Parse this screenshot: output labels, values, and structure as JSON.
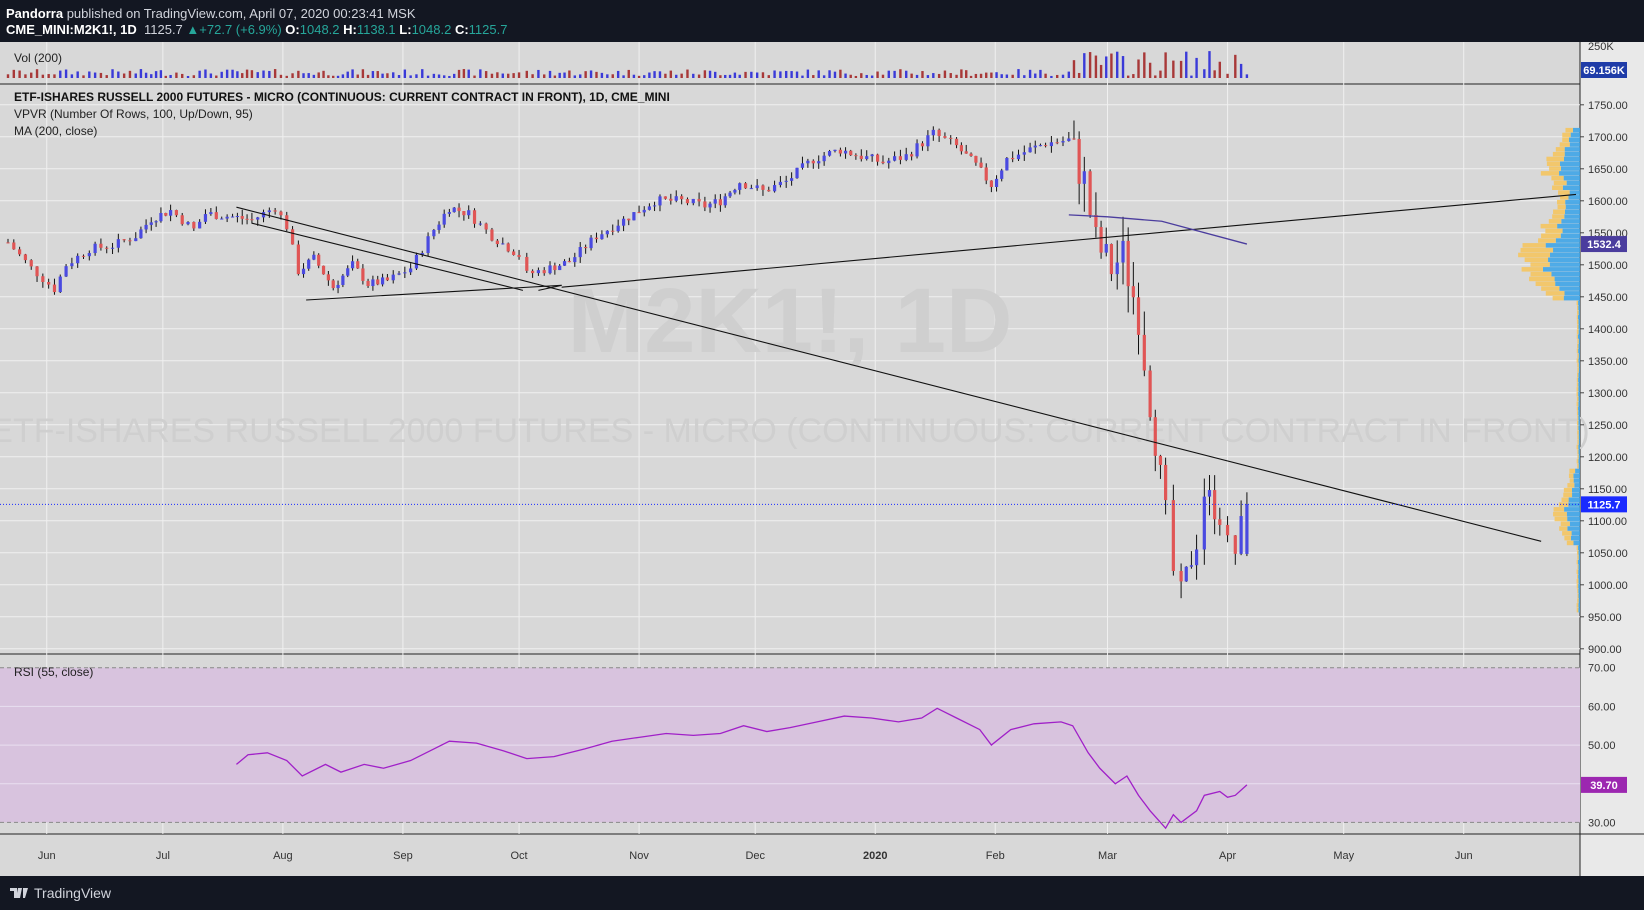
{
  "header": {
    "author": "Pandorra",
    "published_text": "published on TradingView.com, April 07, 2020 00:23:41 MSK",
    "symbol": "CME_MINI:M2K1!, 1D",
    "last": "1125.7",
    "change": "+72.7 (+6.9%)",
    "ohlc": {
      "o": "1048.2",
      "h": "1138.1",
      "l": "1048.2",
      "c": "1125.7"
    }
  },
  "footer": {
    "brand": "TradingView"
  },
  "colors": {
    "background": "#d8d8d8",
    "grid": "#f0f0f0",
    "up_candle": "#4a4ae0",
    "down_candle": "#e05555",
    "ma_line": "#4b3d9e",
    "rsi_line": "#a020c8",
    "rsi_band": "#d8c3de",
    "price_marker": "#1a2aff",
    "vpvr_up": "#3fa5e8",
    "vpvr_down": "#f5c560"
  },
  "chart_data": [
    {
      "type": "candlestick",
      "panel": "price",
      "title": "ETF-ISHARES RUSSELL 2000 FUTURES - MICRO (CONTINUOUS: CURRENT CONTRACT IN FRONT), 1D, CME_MINI",
      "watermark_symbol": "M2K1!, 1D",
      "watermark_name": "ETF-ISHARES RUSSELL 2000 FUTURES - MICRO (CONTINUOUS: CURRENT CONTRACT IN FRONT)",
      "indicators": [
        "VPVR (Number Of Rows, 100, Up/Down, 95)",
        "MA (200, close)"
      ],
      "x_ticks": [
        "Jun",
        "Jul",
        "Aug",
        "Sep",
        "Oct",
        "Nov",
        "Dec",
        "2020",
        "Feb",
        "Mar",
        "Apr",
        "May",
        "Jun"
      ],
      "x_tick_dates": [
        "2019-06-01",
        "2019-07-01",
        "2019-08-01",
        "2019-09-01",
        "2019-10-01",
        "2019-11-01",
        "2019-12-01",
        "2020-01-01",
        "2020-02-01",
        "2020-03-01",
        "2020-04-01",
        "2020-05-01",
        "2020-06-01"
      ],
      "x_range": [
        "2019-05-22",
        "2020-06-30"
      ],
      "y_ticks": [
        900,
        950,
        1000,
        1050,
        1100,
        1150,
        1200,
        1250,
        1300,
        1350,
        1400,
        1450,
        1500,
        1550,
        1600,
        1650,
        1700,
        1750
      ],
      "ylim": [
        895,
        1770
      ],
      "close_path": [
        {
          "d": "2019-05-22",
          "c": 1535
        },
        {
          "d": "2019-05-28",
          "c": 1495
        },
        {
          "d": "2019-06-03",
          "c": 1462
        },
        {
          "d": "2019-06-06",
          "c": 1500
        },
        {
          "d": "2019-06-12",
          "c": 1525
        },
        {
          "d": "2019-06-18",
          "c": 1530
        },
        {
          "d": "2019-06-24",
          "c": 1545
        },
        {
          "d": "2019-06-28",
          "c": 1572
        },
        {
          "d": "2019-07-03",
          "c": 1585
        },
        {
          "d": "2019-07-09",
          "c": 1555
        },
        {
          "d": "2019-07-12",
          "c": 1580
        },
        {
          "d": "2019-07-19",
          "c": 1575
        },
        {
          "d": "2019-07-24",
          "c": 1570
        },
        {
          "d": "2019-07-30",
          "c": 1590
        },
        {
          "d": "2019-08-02",
          "c": 1560
        },
        {
          "d": "2019-08-05",
          "c": 1490
        },
        {
          "d": "2019-08-09",
          "c": 1510
        },
        {
          "d": "2019-08-14",
          "c": 1465
        },
        {
          "d": "2019-08-19",
          "c": 1500
        },
        {
          "d": "2019-08-23",
          "c": 1470
        },
        {
          "d": "2019-08-28",
          "c": 1475
        },
        {
          "d": "2019-09-03",
          "c": 1495
        },
        {
          "d": "2019-09-09",
          "c": 1555
        },
        {
          "d": "2019-09-13",
          "c": 1590
        },
        {
          "d": "2019-09-18",
          "c": 1580
        },
        {
          "d": "2019-09-24",
          "c": 1545
        },
        {
          "d": "2019-10-01",
          "c": 1515
        },
        {
          "d": "2019-10-03",
          "c": 1485
        },
        {
          "d": "2019-10-09",
          "c": 1495
        },
        {
          "d": "2019-10-14",
          "c": 1505
        },
        {
          "d": "2019-10-21",
          "c": 1545
        },
        {
          "d": "2019-10-28",
          "c": 1570
        },
        {
          "d": "2019-11-05",
          "c": 1600
        },
        {
          "d": "2019-11-12",
          "c": 1600
        },
        {
          "d": "2019-11-18",
          "c": 1592
        },
        {
          "d": "2019-11-22",
          "c": 1600
        },
        {
          "d": "2019-11-27",
          "c": 1630
        },
        {
          "d": "2019-12-03",
          "c": 1615
        },
        {
          "d": "2019-12-09",
          "c": 1630
        },
        {
          "d": "2019-12-16",
          "c": 1665
        },
        {
          "d": "2019-12-23",
          "c": 1680
        },
        {
          "d": "2019-12-27",
          "c": 1672
        },
        {
          "d": "2020-01-03",
          "c": 1660
        },
        {
          "d": "2020-01-09",
          "c": 1670
        },
        {
          "d": "2020-01-16",
          "c": 1705
        },
        {
          "d": "2020-01-22",
          "c": 1685
        },
        {
          "d": "2020-01-27",
          "c": 1655
        },
        {
          "d": "2020-01-31",
          "c": 1625
        },
        {
          "d": "2020-02-04",
          "c": 1665
        },
        {
          "d": "2020-02-10",
          "c": 1680
        },
        {
          "d": "2020-02-14",
          "c": 1690
        },
        {
          "d": "2020-02-20",
          "c": 1695
        },
        {
          "d": "2020-02-24",
          "c": 1630
        },
        {
          "d": "2020-02-27",
          "c": 1535
        },
        {
          "d": "2020-03-02",
          "c": 1495
        },
        {
          "d": "2020-03-05",
          "c": 1515
        },
        {
          "d": "2020-03-09",
          "c": 1420
        },
        {
          "d": "2020-03-12",
          "c": 1285
        },
        {
          "d": "2020-03-16",
          "c": 1110
        },
        {
          "d": "2020-03-18",
          "c": 1020
        },
        {
          "d": "2020-03-20",
          "c": 985
        },
        {
          "d": "2020-03-24",
          "c": 1070
        },
        {
          "d": "2020-03-26",
          "c": 1145
        },
        {
          "d": "2020-03-30",
          "c": 1110
        },
        {
          "d": "2020-04-01",
          "c": 1060
        },
        {
          "d": "2020-04-03",
          "c": 1052
        },
        {
          "d": "2020-04-06",
          "c": 1125.7
        }
      ],
      "moving_average_200": [
        {
          "d": "2020-02-20",
          "v": 1578
        },
        {
          "d": "2020-03-01",
          "v": 1575
        },
        {
          "d": "2020-03-15",
          "v": 1568
        },
        {
          "d": "2020-04-06",
          "v": 1532.4
        }
      ],
      "trendlines": [
        {
          "from": {
            "d": "2019-07-20",
            "v": 1590
          },
          "to": {
            "d": "2020-06-21",
            "v": 1068
          }
        },
        {
          "from": {
            "d": "2019-07-24",
            "v": 1565
          },
          "to": {
            "d": "2019-10-02",
            "v": 1460
          }
        },
        {
          "from": {
            "d": "2019-08-07",
            "v": 1445
          },
          "to": {
            "d": "2019-10-12",
            "v": 1468
          }
        },
        {
          "from": {
            "d": "2019-10-12",
            "v": 1465
          },
          "to": {
            "d": "2020-06-30",
            "v": 1610
          }
        },
        {
          "from": {
            "d": "2019-10-06",
            "v": 1460
          },
          "to": {
            "d": "2019-10-12",
            "v": 1468
          }
        }
      ],
      "current_price": 1125.7,
      "ma_label": 1532.4
    },
    {
      "type": "bar",
      "panel": "volume",
      "title": "Vol (200)",
      "y_ticks": [
        "250K"
      ],
      "last_value": "69.156K"
    },
    {
      "type": "line",
      "panel": "rsi",
      "title": "RSI (55, close)",
      "y_ticks": [
        30,
        40,
        50,
        60,
        70
      ],
      "ylim": [
        27,
        72
      ],
      "band": [
        30,
        70
      ],
      "series": [
        {
          "d": "2019-07-20",
          "v": 45
        },
        {
          "d": "2019-07-23",
          "v": 47.5
        },
        {
          "d": "2019-07-28",
          "v": 48
        },
        {
          "d": "2019-08-02",
          "v": 46
        },
        {
          "d": "2019-08-06",
          "v": 42
        },
        {
          "d": "2019-08-12",
          "v": 45
        },
        {
          "d": "2019-08-16",
          "v": 43
        },
        {
          "d": "2019-08-22",
          "v": 45
        },
        {
          "d": "2019-08-27",
          "v": 44
        },
        {
          "d": "2019-09-03",
          "v": 46
        },
        {
          "d": "2019-09-09",
          "v": 49
        },
        {
          "d": "2019-09-13",
          "v": 51
        },
        {
          "d": "2019-09-20",
          "v": 50.5
        },
        {
          "d": "2019-09-27",
          "v": 48.5
        },
        {
          "d": "2019-10-03",
          "v": 46.5
        },
        {
          "d": "2019-10-10",
          "v": 47
        },
        {
          "d": "2019-10-18",
          "v": 49
        },
        {
          "d": "2019-10-25",
          "v": 51
        },
        {
          "d": "2019-11-01",
          "v": 52
        },
        {
          "d": "2019-11-08",
          "v": 53
        },
        {
          "d": "2019-11-15",
          "v": 52.5
        },
        {
          "d": "2019-11-22",
          "v": 53
        },
        {
          "d": "2019-11-28",
          "v": 55
        },
        {
          "d": "2019-12-04",
          "v": 53.5
        },
        {
          "d": "2019-12-10",
          "v": 54.5
        },
        {
          "d": "2019-12-17",
          "v": 56
        },
        {
          "d": "2019-12-24",
          "v": 57.5
        },
        {
          "d": "2019-12-31",
          "v": 57
        },
        {
          "d": "2020-01-07",
          "v": 56
        },
        {
          "d": "2020-01-13",
          "v": 57
        },
        {
          "d": "2020-01-17",
          "v": 59.5
        },
        {
          "d": "2020-01-22",
          "v": 57
        },
        {
          "d": "2020-01-28",
          "v": 54
        },
        {
          "d": "2020-01-31",
          "v": 50
        },
        {
          "d": "2020-02-05",
          "v": 54
        },
        {
          "d": "2020-02-11",
          "v": 55.5
        },
        {
          "d": "2020-02-18",
          "v": 56
        },
        {
          "d": "2020-02-21",
          "v": 55
        },
        {
          "d": "2020-02-25",
          "v": 48
        },
        {
          "d": "2020-02-28",
          "v": 44
        },
        {
          "d": "2020-03-03",
          "v": 40
        },
        {
          "d": "2020-03-06",
          "v": 42
        },
        {
          "d": "2020-03-09",
          "v": 37
        },
        {
          "d": "2020-03-12",
          "v": 33
        },
        {
          "d": "2020-03-16",
          "v": 28.5
        },
        {
          "d": "2020-03-18",
          "v": 32
        },
        {
          "d": "2020-03-20",
          "v": 30
        },
        {
          "d": "2020-03-24",
          "v": 33
        },
        {
          "d": "2020-03-26",
          "v": 37
        },
        {
          "d": "2020-03-30",
          "v": 38
        },
        {
          "d": "2020-04-01",
          "v": 36.5
        },
        {
          "d": "2020-04-03",
          "v": 37
        },
        {
          "d": "2020-04-06",
          "v": 39.7
        }
      ],
      "last_value": "39.70"
    }
  ]
}
